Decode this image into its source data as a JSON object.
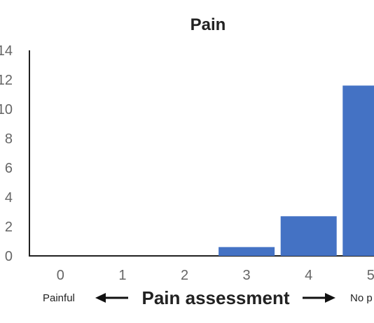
{
  "chart_data": {
    "type": "bar",
    "title": "Pain",
    "xlabel": "Pain assessment",
    "ylabel": "",
    "categories": [
      "0",
      "1",
      "2",
      "3",
      "4",
      "5"
    ],
    "values": [
      0,
      0,
      0,
      0.6,
      2.7,
      11.6
    ],
    "ylim": [
      0,
      14
    ],
    "y_ticks": [
      "0",
      "2",
      "4",
      "6",
      "8",
      "10",
      "12",
      "14"
    ],
    "legend": "none",
    "grid": false,
    "bar_color": "#4472c4",
    "x_end_labels": {
      "left": "Painful",
      "right": "No p"
    }
  }
}
